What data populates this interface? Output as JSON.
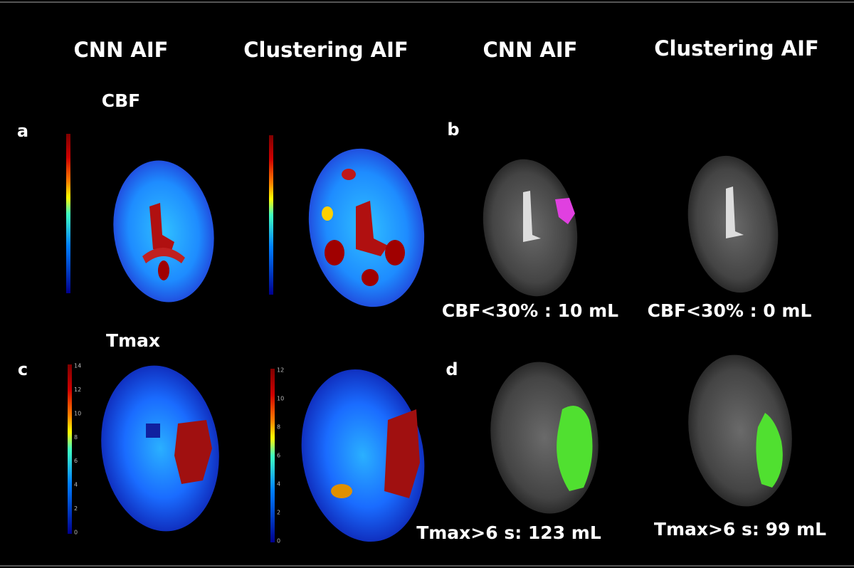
{
  "column_headers": [
    "CNN AIF",
    "Clustering AIF",
    "CNN AIF",
    "Clustering AIF"
  ],
  "row_labels": [
    "CBF",
    "Tmax"
  ],
  "panel_labels": [
    "a",
    "b",
    "c",
    "d"
  ],
  "volumes": [
    "CBF<30% : 10 mL",
    "CBF<30% : 0 mL",
    "Tmax>6 s: 123 mL",
    "Tmax>6 s: 99 mL"
  ],
  "tmax_scale_labels": [
    [
      "14",
      "12",
      "10",
      "8",
      "6",
      "4",
      "2",
      "0"
    ],
    [
      "12",
      "10",
      "8",
      "6",
      "4",
      "2",
      "0"
    ]
  ]
}
